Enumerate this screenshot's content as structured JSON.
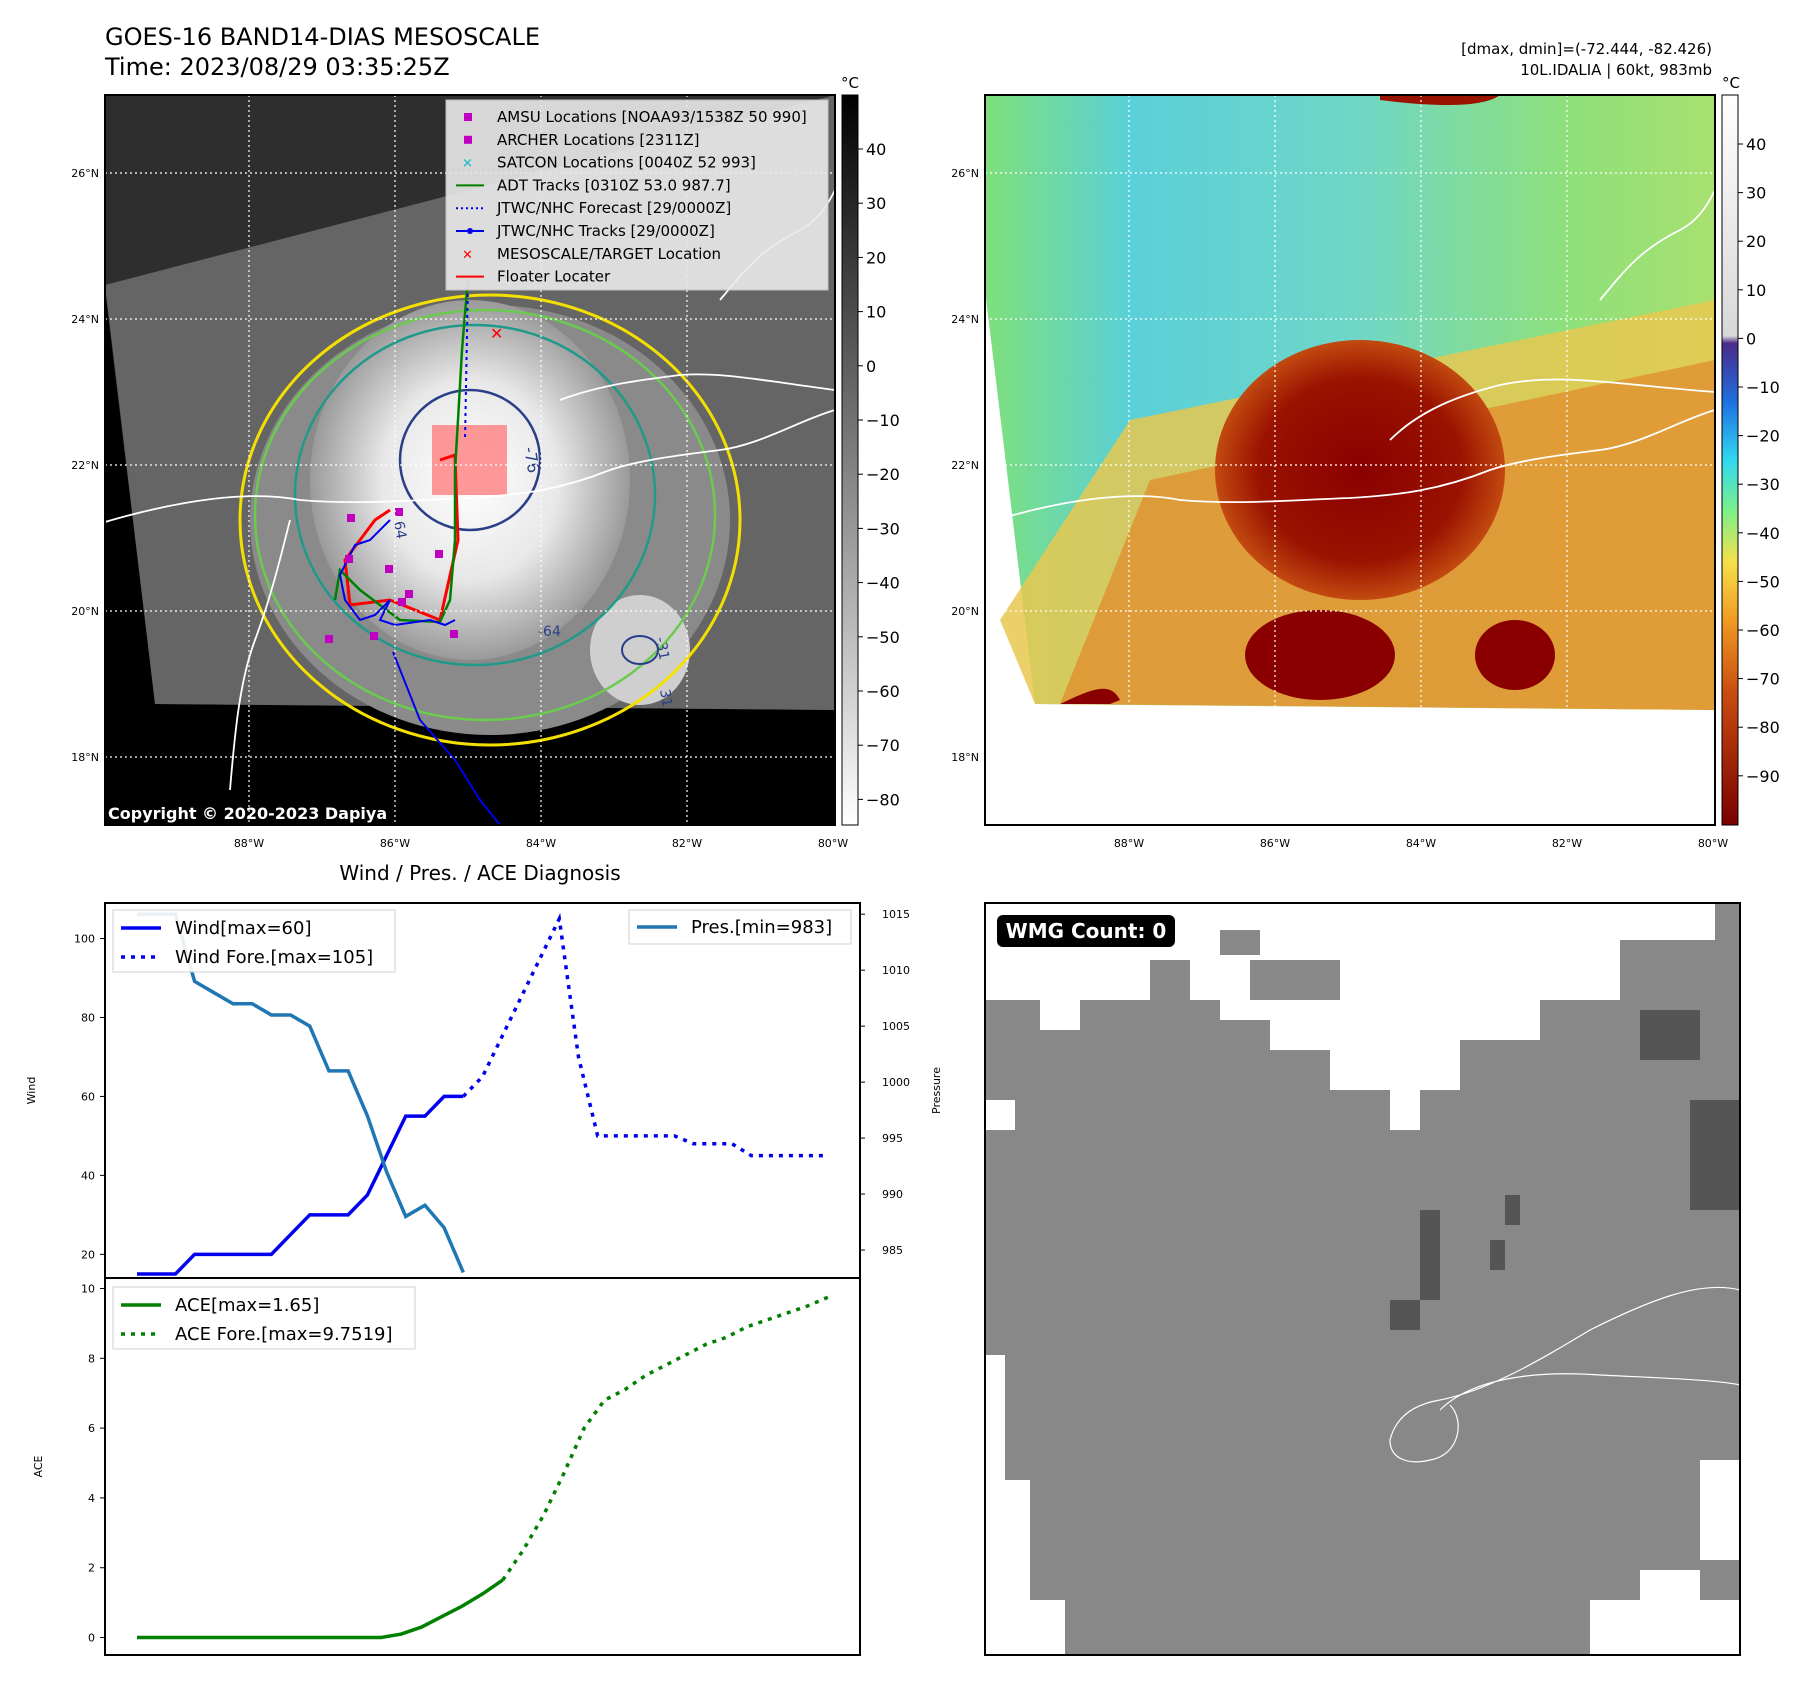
{
  "header": {
    "title": "GOES-16 BAND14-DIAS MESOSCALE",
    "time": "Time: 2023/08/29 03:35:25Z",
    "dmax_line": "[dmax, dmin]=(-72.444, -82.426)",
    "storm_line": "10L.IDALIA | 60kt, 983mb",
    "copyright": "Copyright © 2020-2023 Dapiya",
    "wmg_count": "WMG Count: 0",
    "diag_title": "Wind / Pres. / ACE Diagnosis"
  },
  "colors": {
    "land_dark": "#000000",
    "wmg_gray": "#888888",
    "wmg_dark": "#555555",
    "wind": "#0000ee",
    "pres": "#1f77b4",
    "ace": "#008000",
    "floater": "#ff0000",
    "amsu": "#c000c0",
    "satcon": "#17becf"
  },
  "map_panels": {
    "lat_labels": [
      "26°N",
      "24°N",
      "22°N",
      "20°N",
      "18°N"
    ],
    "lon_labels": [
      "88°W",
      "86°W",
      "84°W",
      "82°W",
      "80°W"
    ],
    "contour_labels": [
      "-76",
      "64",
      "-64",
      "-31",
      "31"
    ],
    "ir_cbar_unit": "°C",
    "ir_cbar_ticks": [
      "40",
      "30",
      "20",
      "10",
      "0",
      "−10",
      "−20",
      "−30",
      "−40",
      "−50",
      "−60",
      "−70",
      "−80"
    ],
    "color_cbar_unit": "°C",
    "color_cbar_ticks": [
      "40",
      "30",
      "20",
      "10",
      "0",
      "−10",
      "−20",
      "−30",
      "−40",
      "−50",
      "−60",
      "−70",
      "−80",
      "−90"
    ]
  },
  "legend": [
    {
      "label": "AMSU Locations [NOAA93/1538Z 50 990]",
      "icon": "square-marker",
      "color": "#c000c0"
    },
    {
      "label": "ARCHER Locations [2311Z]",
      "icon": "square-marker",
      "color": "#c000c0"
    },
    {
      "label": "SATCON Locations [0040Z 52 993]",
      "icon": "x-marker",
      "color": "#17becf"
    },
    {
      "label": "ADT Tracks [0310Z 53.0 987.7]",
      "icon": "line",
      "color": "#008000"
    },
    {
      "label": "JTWC/NHC Forecast [29/0000Z]",
      "icon": "dotted-line",
      "color": "#0000ee"
    },
    {
      "label": "JTWC/NHC Tracks [29/0000Z]",
      "icon": "line-dot",
      "color": "#0000ee"
    },
    {
      "label": "MESOSCALE/TARGET Location",
      "icon": "x-marker",
      "color": "#ff0000"
    },
    {
      "label": "Floater Locater",
      "icon": "line",
      "color": "#ff0000"
    }
  ],
  "chart_data": [
    {
      "type": "line",
      "xlabel": "",
      "ylabel": "Wind",
      "y2label": "Pressure",
      "ylim": [
        14,
        109
      ],
      "y2lim": [
        982.5,
        1016
      ],
      "yticks": [
        20,
        40,
        60,
        80,
        100
      ],
      "y2ticks": [
        985,
        990,
        995,
        1000,
        1005,
        1010,
        1015
      ],
      "series": [
        {
          "name": "Wind[max=60]",
          "style": "solid",
          "axis": "left",
          "values": [
            15,
            15,
            15,
            20,
            20,
            20,
            20,
            20,
            25,
            30,
            30,
            30,
            35,
            45,
            55,
            55,
            60,
            60
          ]
        },
        {
          "name": "Wind Fore.[max=105]",
          "style": "dotted",
          "axis": "left",
          "x_start": 17,
          "values": [
            60,
            65,
            75,
            85,
            95,
            105,
            70,
            50,
            50,
            50,
            50,
            50,
            48,
            48,
            48,
            45,
            45,
            45,
            45,
            45
          ]
        },
        {
          "name": "Pres.[min=983]",
          "style": "solid",
          "axis": "right",
          "values": [
            1015,
            1015,
            1015,
            1009,
            1008,
            1007,
            1007,
            1006,
            1006,
            1005,
            1001,
            1001,
            997,
            992,
            988,
            989,
            987,
            983
          ]
        }
      ]
    },
    {
      "type": "line",
      "xlabel": "",
      "ylabel": "ACE",
      "ylim": [
        -0.5,
        10.3
      ],
      "yticks": [
        0,
        2,
        4,
        6,
        8,
        10
      ],
      "series": [
        {
          "name": "ACE[max=1.65]",
          "style": "solid",
          "values": [
            0,
            0,
            0,
            0,
            0,
            0,
            0,
            0,
            0,
            0,
            0,
            0,
            0,
            0.1,
            0.3,
            0.6,
            0.9,
            1.25,
            1.65
          ]
        },
        {
          "name": "ACE Fore.[max=9.7519]",
          "style": "dotted",
          "x_start": 18,
          "values": [
            1.65,
            2.5,
            3.5,
            4.7,
            6.0,
            6.8,
            7.1,
            7.5,
            7.8,
            8.1,
            8.4,
            8.6,
            8.9,
            9.1,
            9.3,
            9.5,
            9.75
          ]
        }
      ]
    }
  ]
}
